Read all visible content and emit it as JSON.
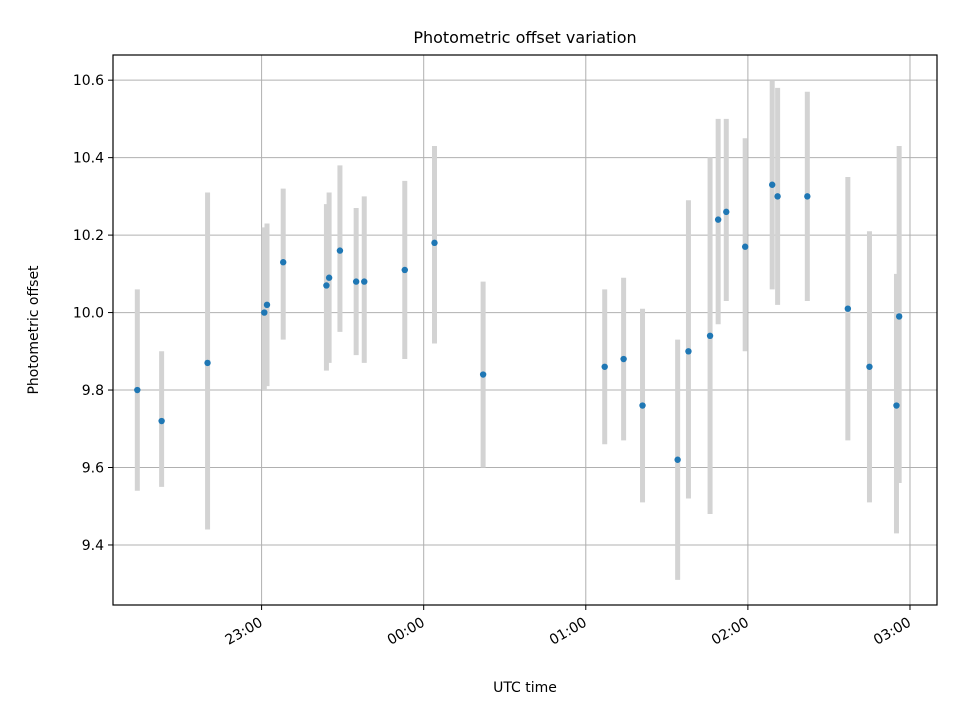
{
  "chart_data": {
    "type": "scatter",
    "title": "Photometric offset variation",
    "xlabel": "UTC time",
    "ylabel": "Photometric offset",
    "x_tick_labels": [
      "23:00",
      "00:00",
      "01:00",
      "02:00",
      "03:00"
    ],
    "x_tick_times": [
      "23:00",
      "00:00",
      "01:00",
      "02:00",
      "03:00"
    ],
    "y_tick_labels": [
      "9.4",
      "9.6",
      "9.8",
      "10.0",
      "10.2",
      "10.4",
      "10.6"
    ],
    "y_ticks": [
      9.4,
      9.6,
      9.8,
      10.0,
      10.2,
      10.4,
      10.6
    ],
    "xlim": [
      "22:05",
      "03:10"
    ],
    "ylim": [
      9.245,
      10.665
    ],
    "grid": true,
    "colors": {
      "point": "#1f77b4",
      "errorbar": "#d3d3d3",
      "grid": "#b0b0b0"
    },
    "points": [
      {
        "t": "22:14",
        "y": 9.8,
        "lo": 9.54,
        "hi": 10.06
      },
      {
        "t": "22:23",
        "y": 9.72,
        "lo": 9.55,
        "hi": 9.9
      },
      {
        "t": "22:40",
        "y": 9.87,
        "lo": 9.44,
        "hi": 10.31
      },
      {
        "t": "23:01",
        "y": 10.0,
        "lo": 9.8,
        "hi": 10.22
      },
      {
        "t": "23:02",
        "y": 10.02,
        "lo": 9.81,
        "hi": 10.23
      },
      {
        "t": "23:08",
        "y": 10.13,
        "lo": 9.93,
        "hi": 10.32
      },
      {
        "t": "23:24",
        "y": 10.07,
        "lo": 9.85,
        "hi": 10.28
      },
      {
        "t": "23:25",
        "y": 10.09,
        "lo": 9.87,
        "hi": 10.31
      },
      {
        "t": "23:29",
        "y": 10.16,
        "lo": 9.95,
        "hi": 10.38
      },
      {
        "t": "23:35",
        "y": 10.08,
        "lo": 9.89,
        "hi": 10.27
      },
      {
        "t": "23:38",
        "y": 10.08,
        "lo": 9.87,
        "hi": 10.3
      },
      {
        "t": "23:53",
        "y": 10.11,
        "lo": 9.88,
        "hi": 10.34
      },
      {
        "t": "00:04",
        "y": 10.18,
        "lo": 9.92,
        "hi": 10.43
      },
      {
        "t": "00:22",
        "y": 9.84,
        "lo": 9.6,
        "hi": 10.08
      },
      {
        "t": "01:07",
        "y": 9.86,
        "lo": 9.66,
        "hi": 10.06
      },
      {
        "t": "01:14",
        "y": 9.88,
        "lo": 9.67,
        "hi": 10.09
      },
      {
        "t": "01:21",
        "y": 9.76,
        "lo": 9.51,
        "hi": 10.01
      },
      {
        "t": "01:34",
        "y": 9.62,
        "lo": 9.31,
        "hi": 9.93
      },
      {
        "t": "01:38",
        "y": 9.9,
        "lo": 9.52,
        "hi": 10.29
      },
      {
        "t": "01:46",
        "y": 9.94,
        "lo": 9.48,
        "hi": 10.4
      },
      {
        "t": "01:49",
        "y": 10.24,
        "lo": 9.97,
        "hi": 10.5
      },
      {
        "t": "01:52",
        "y": 10.26,
        "lo": 10.03,
        "hi": 10.5
      },
      {
        "t": "01:59",
        "y": 10.17,
        "lo": 9.9,
        "hi": 10.45
      },
      {
        "t": "02:09",
        "y": 10.33,
        "lo": 10.06,
        "hi": 10.6
      },
      {
        "t": "02:11",
        "y": 10.3,
        "lo": 10.02,
        "hi": 10.58
      },
      {
        "t": "02:22",
        "y": 10.3,
        "lo": 10.03,
        "hi": 10.57
      },
      {
        "t": "02:37",
        "y": 10.01,
        "lo": 9.67,
        "hi": 10.35
      },
      {
        "t": "02:45",
        "y": 9.86,
        "lo": 9.51,
        "hi": 10.21
      },
      {
        "t": "02:55",
        "y": 9.76,
        "lo": 9.43,
        "hi": 10.1
      },
      {
        "t": "02:56",
        "y": 9.99,
        "lo": 9.56,
        "hi": 10.43
      }
    ]
  }
}
